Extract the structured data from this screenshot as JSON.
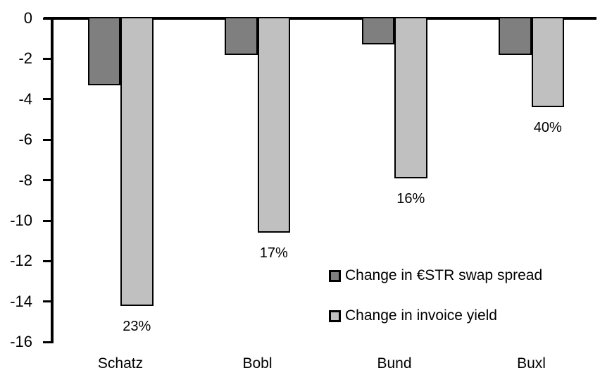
{
  "chart_data": {
    "type": "bar",
    "orientation": "vertical",
    "title": "",
    "xlabel": "",
    "ylabel": "",
    "categories": [
      "Schatz",
      "Bobl",
      "Bund",
      "Buxl"
    ],
    "series": [
      {
        "name": "Change in €STR swap spread",
        "color": "#7f7f7f",
        "values": [
          -3.3,
          -1.8,
          -1.3,
          -1.8
        ]
      },
      {
        "name": "Change in invoice yield",
        "color": "#c0c0c0",
        "values": [
          -14.2,
          -10.6,
          -7.9,
          -4.4
        ],
        "data_labels": [
          "23%",
          "17%",
          "16%",
          "40%"
        ]
      }
    ],
    "ylim": [
      -16,
      0
    ],
    "yticks": [
      0,
      -2,
      -4,
      -6,
      -8,
      -10,
      -12,
      -14,
      -16
    ],
    "grid": false,
    "legend_position": "inside-right",
    "bar_border_color": "#000000",
    "axis_color": "#000000"
  }
}
